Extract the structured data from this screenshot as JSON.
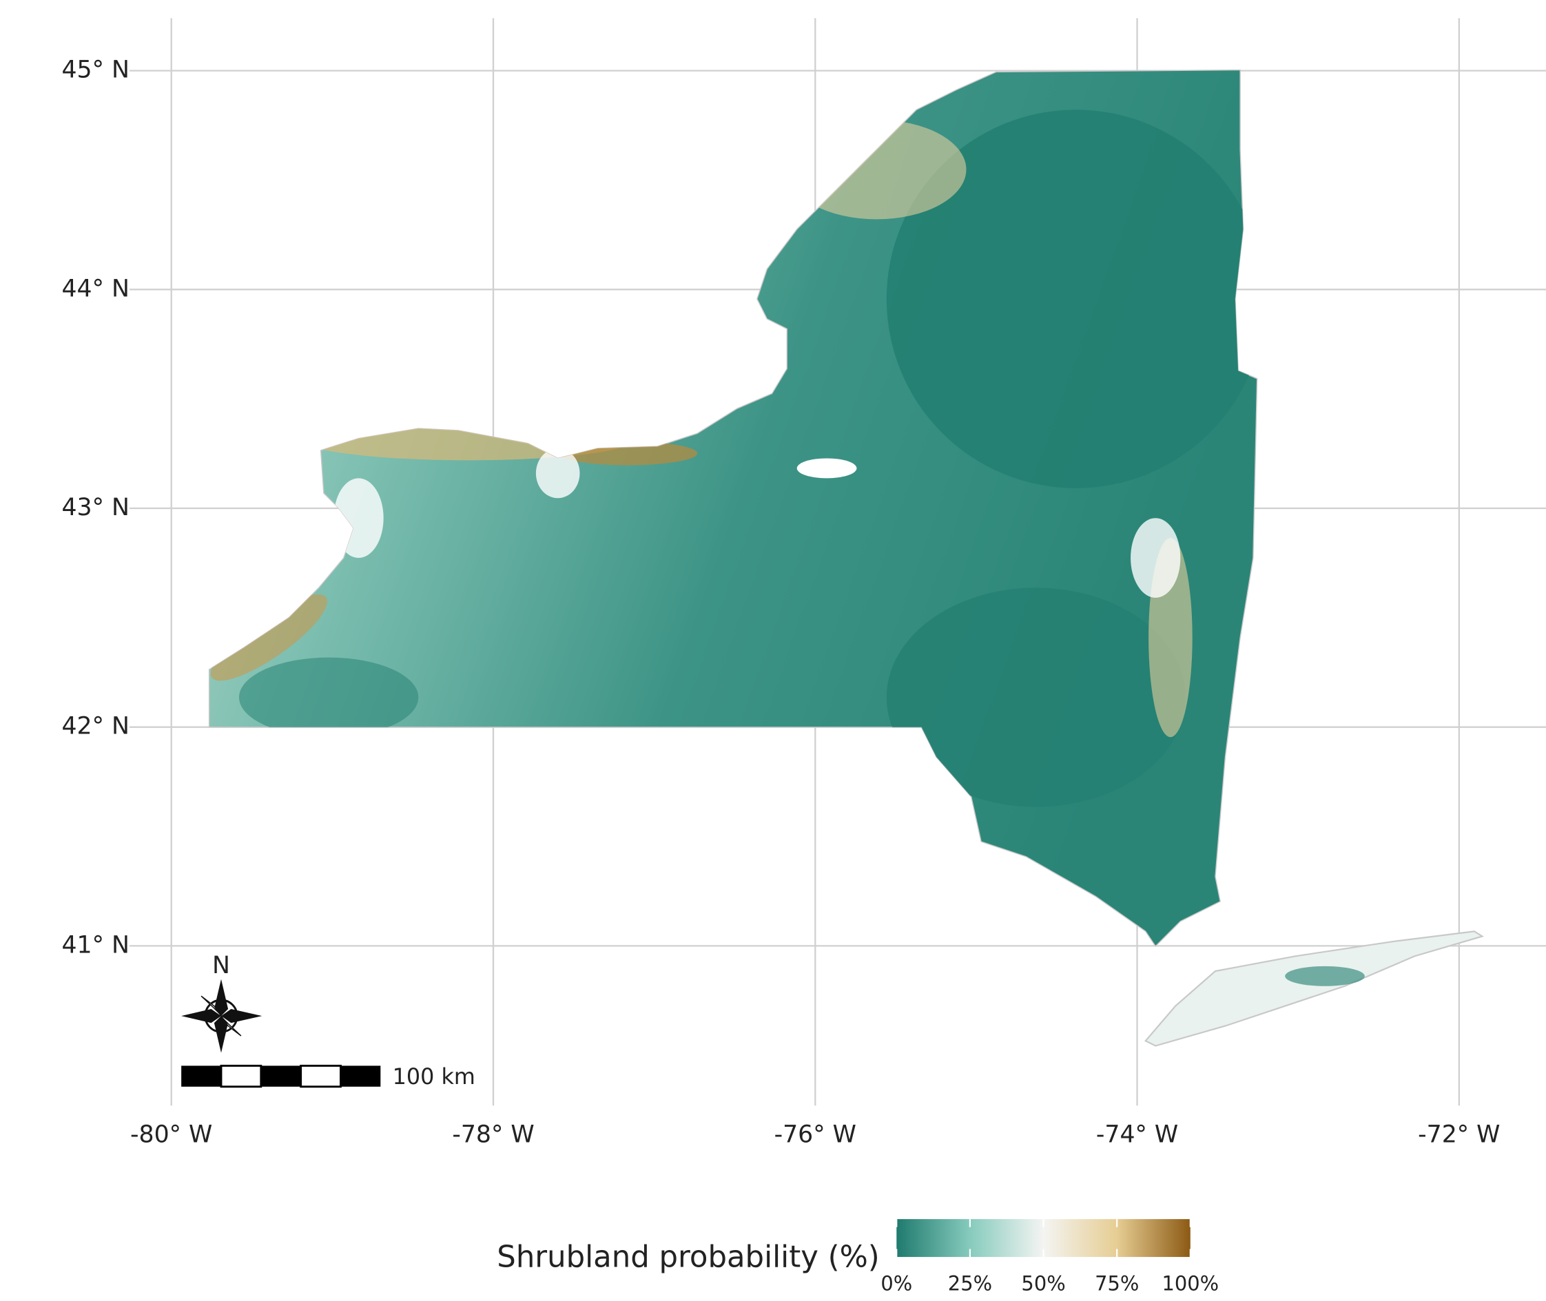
{
  "map": {
    "xlim": [
      -80.26,
      -71.46
    ],
    "ylim": [
      40.27,
      45.24
    ],
    "xticks": [
      {
        "value": -80,
        "label": "-80° W"
      },
      {
        "value": -78,
        "label": "-78° W"
      },
      {
        "value": -76,
        "label": "-76° W"
      },
      {
        "value": -74,
        "label": "-74° W"
      },
      {
        "value": -72,
        "label": "-72° W"
      }
    ],
    "yticks": [
      {
        "value": 41,
        "label": "41° N"
      },
      {
        "value": 42,
        "label": "42° N"
      },
      {
        "value": 43,
        "label": "43° N"
      },
      {
        "value": 44,
        "label": "44° N"
      },
      {
        "value": 45,
        "label": "45° N"
      }
    ],
    "grid": true,
    "legend": {
      "title": "Shrubland probability (%)",
      "range": [
        0,
        100
      ],
      "ticks": [
        {
          "value": 0,
          "label": "0%"
        },
        {
          "value": 25,
          "label": "25%"
        },
        {
          "value": 50,
          "label": "50%"
        },
        {
          "value": 75,
          "label": "75%"
        },
        {
          "value": 100,
          "label": "100%"
        }
      ],
      "colors": [
        "#1f7a6e",
        "#86cbbd",
        "#f4f4f2",
        "#e6cd93",
        "#8c5a14"
      ]
    },
    "compass": {
      "label": "N"
    },
    "scale_bar": {
      "label": "100 km"
    }
  }
}
